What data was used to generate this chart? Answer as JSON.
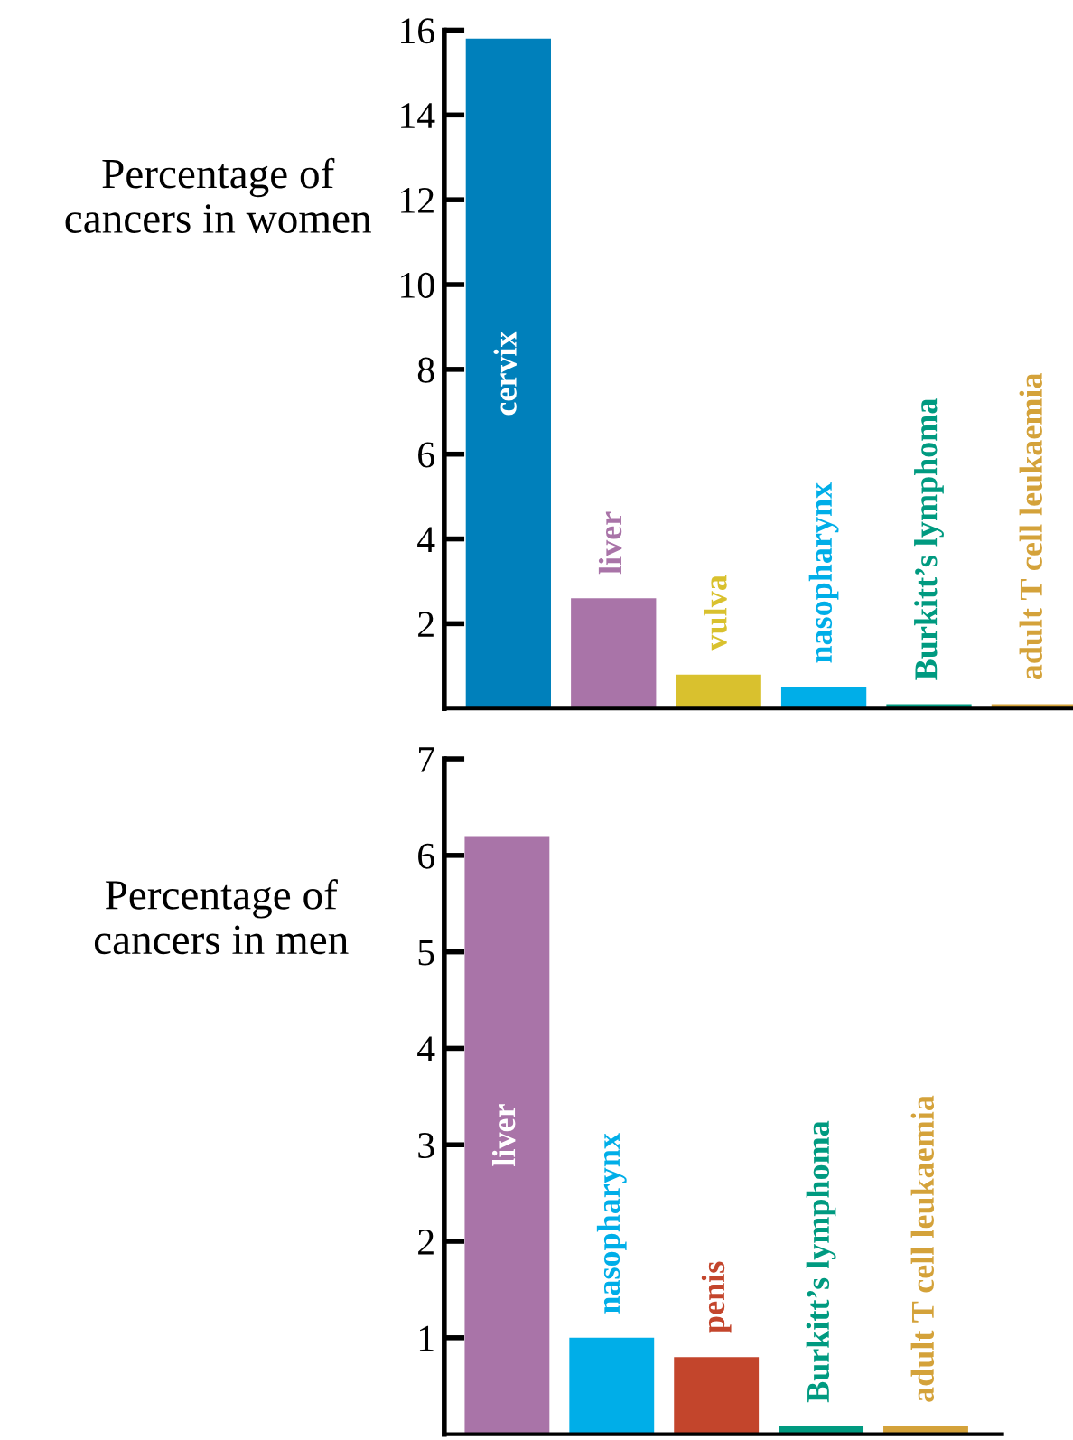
{
  "chart_data": [
    {
      "type": "bar",
      "ylabel": "Percentage of\ncancers in women",
      "categories": [
        "cervix",
        "liver",
        "vulva",
        "nasopharynx",
        "Burkitt’s lymphoma",
        "adult T cell leukaemia"
      ],
      "values": [
        15.8,
        2.6,
        0.8,
        0.5,
        0.1,
        0.1
      ],
      "colors": [
        "#0080bb",
        "#a974a8",
        "#d9c12e",
        "#00aee8",
        "#009a80",
        "#d4a23a"
      ],
      "ylim": [
        0,
        16
      ],
      "yticks": [
        2,
        4,
        6,
        8,
        10,
        12,
        14,
        16
      ],
      "tick_labels": "y",
      "grid": false,
      "legend": false
    },
    {
      "type": "bar",
      "ylabel": "Percentage of\ncancers in men",
      "categories": [
        "liver",
        "nasopharynx",
        "penis",
        "Burkitt’s lymphoma",
        "adult T cell leukaemia"
      ],
      "values": [
        6.2,
        1.0,
        0.8,
        0.08,
        0.08
      ],
      "colors": [
        "#a974a8",
        "#00aee8",
        "#c3452c",
        "#009a80",
        "#d4a23a"
      ],
      "ylim": [
        0,
        7
      ],
      "yticks": [
        1,
        2,
        3,
        4,
        5,
        6,
        7
      ],
      "tick_labels": "y",
      "grid": false,
      "legend": false
    }
  ]
}
